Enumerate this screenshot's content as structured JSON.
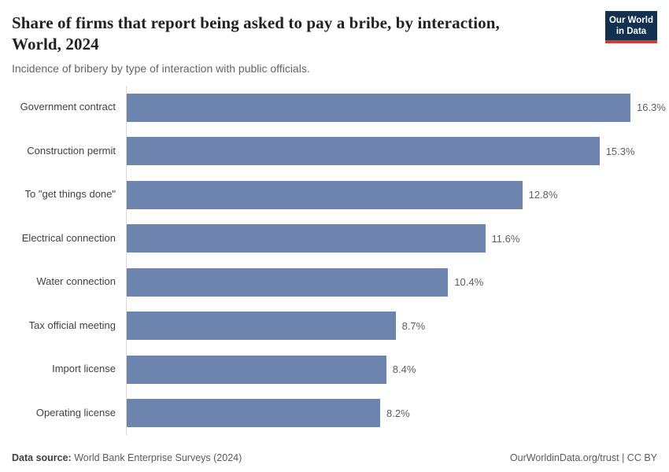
{
  "header": {
    "title": "Share of firms that report being asked to pay a bribe, by interaction, World, 2024",
    "title_lines": [
      "Share of firms that report being asked to pay a bribe, by interaction,",
      "World, 2024"
    ],
    "subtitle": "Incidence of bribery by type of interaction with public officials.",
    "logo": {
      "line1": "Our World",
      "line2": "in Data",
      "bg_color": "#12304f",
      "accent_color": "#d63a32"
    }
  },
  "chart_data": {
    "type": "bar",
    "orientation": "horizontal",
    "title": "Share of firms that report being asked to pay a bribe, by interaction, World, 2024",
    "subtitle": "Incidence of bribery by type of interaction with public officials.",
    "categories": [
      "Government contract",
      "Construction permit",
      "To \"get things done\"",
      "Electrical connection",
      "Water connection",
      "Tax official meeting",
      "Import license",
      "Operating license"
    ],
    "values": [
      16.3,
      15.3,
      12.8,
      11.6,
      10.4,
      8.7,
      8.4,
      8.2
    ],
    "value_labels": [
      "16.3%",
      "15.3%",
      "12.8%",
      "11.6%",
      "10.4%",
      "8.7%",
      "8.4%",
      "8.2%"
    ],
    "unit": "%",
    "xlabel": "",
    "ylabel": "",
    "xlim": [
      0,
      16.3
    ],
    "grid": false,
    "legend": false,
    "bar_color": "#6d85ae",
    "axis_line_color": "#d9d9d9"
  },
  "footer": {
    "source_label": "Data source:",
    "source_value": " World Bank Enterprise Surveys (2024)",
    "right_text": "OurWorldinData.org/trust | CC BY"
  }
}
